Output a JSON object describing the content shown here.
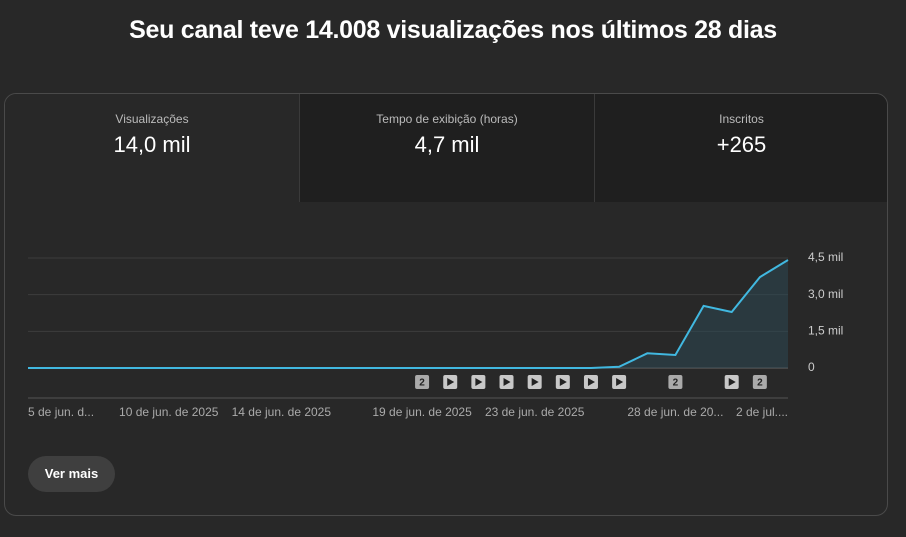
{
  "header": {
    "title": "Seu canal teve 14.008 visualizações nos últimos 28 dias"
  },
  "tabs": [
    {
      "label": "Visualizações",
      "value": "14,0 mil"
    },
    {
      "label": "Tempo de exibição (horas)",
      "value": "4,7 mil"
    },
    {
      "label": "Inscritos",
      "value": "+265"
    }
  ],
  "chart_data": {
    "type": "line",
    "categories": [
      "5 de jun. d...",
      null,
      null,
      null,
      null,
      "10 de jun. de 2025",
      null,
      null,
      null,
      "14 de jun. de 2025",
      null,
      null,
      null,
      null,
      "19 de jun. de 2025",
      null,
      null,
      null,
      "23 de jun. de 2025",
      null,
      null,
      null,
      null,
      "28 de jun. de 20...",
      null,
      null,
      null,
      "2 de jul...."
    ],
    "values": [
      0,
      0,
      0,
      0,
      0,
      0,
      0,
      0,
      0,
      0,
      0,
      0,
      0,
      0,
      0,
      0,
      0,
      0,
      0,
      0,
      0,
      50,
      600,
      530,
      2540,
      2290,
      3720,
      4420
    ],
    "color": "#41b8e0",
    "ylim": [
      0,
      4500
    ],
    "yticks": [
      {
        "value": 0,
        "label": "0"
      },
      {
        "value": 1500,
        "label": "1,5 mil"
      },
      {
        "value": 3000,
        "label": "3,0 mil"
      },
      {
        "value": 4500,
        "label": "4,5 mil"
      }
    ],
    "grid": true,
    "video_counts": [
      null,
      null,
      null,
      null,
      null,
      null,
      null,
      null,
      null,
      null,
      null,
      null,
      null,
      null,
      2,
      1,
      1,
      1,
      1,
      1,
      1,
      1,
      null,
      2,
      null,
      1,
      2,
      null
    ]
  },
  "button": {
    "label": "Ver mais"
  }
}
